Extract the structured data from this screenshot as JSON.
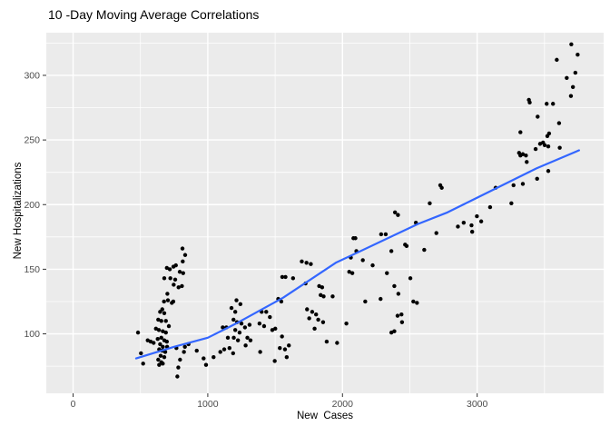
{
  "title": "10 -Day Moving Average Correlations",
  "chart_data": {
    "type": "scatter",
    "title": "10 -Day Moving Average Correlations",
    "xlabel": "New  Cases",
    "ylabel": "New Hospitalizations",
    "xlim": [
      -199,
      3939
    ],
    "ylim": [
      54,
      333
    ],
    "x_ticks": [
      0,
      1000,
      2000,
      3000
    ],
    "x_minor_ticks": [
      500,
      1500,
      2500,
      3500
    ],
    "y_ticks": [
      100,
      150,
      200,
      250,
      300
    ],
    "y_minor_ticks": [
      75,
      125,
      175,
      225,
      275,
      325
    ],
    "grid": true,
    "legend": false,
    "colors": {
      "panel_background": "#EBEBEB",
      "grid_line": "#FFFFFF",
      "point": "#000000",
      "smooth_line": "#3366FF",
      "tick_label": "#4D4D4D",
      "tick_mark": "#333333",
      "title": "#000000"
    },
    "points": [
      [
        482,
        101
      ],
      [
        504,
        85
      ],
      [
        520,
        77
      ],
      [
        554,
        95
      ],
      [
        576,
        94
      ],
      [
        598,
        93
      ],
      [
        615,
        104
      ],
      [
        628,
        96
      ],
      [
        632,
        111
      ],
      [
        632,
        80
      ],
      [
        637,
        103
      ],
      [
        639,
        88
      ],
      [
        639,
        76
      ],
      [
        646,
        117
      ],
      [
        646,
        92
      ],
      [
        650,
        83
      ],
      [
        655,
        110
      ],
      [
        655,
        97
      ],
      [
        655,
        78
      ],
      [
        662,
        119
      ],
      [
        662,
        87
      ],
      [
        666,
        102
      ],
      [
        666,
        90
      ],
      [
        666,
        77
      ],
      [
        675,
        125
      ],
      [
        677,
        143
      ],
      [
        677,
        116
      ],
      [
        677,
        95
      ],
      [
        677,
        82
      ],
      [
        684,
        86
      ],
      [
        689,
        110
      ],
      [
        689,
        101
      ],
      [
        696,
        151
      ],
      [
        696,
        94
      ],
      [
        698,
        90
      ],
      [
        700,
        131
      ],
      [
        704,
        126
      ],
      [
        711,
        106
      ],
      [
        718,
        150
      ],
      [
        722,
        143
      ],
      [
        733,
        124
      ],
      [
        744,
        125
      ],
      [
        745,
        152
      ],
      [
        747,
        138
      ],
      [
        758,
        142
      ],
      [
        763,
        153
      ],
      [
        767,
        89
      ],
      [
        774,
        67
      ],
      [
        781,
        74
      ],
      [
        783,
        136
      ],
      [
        792,
        148
      ],
      [
        794,
        80
      ],
      [
        808,
        137
      ],
      [
        812,
        166
      ],
      [
        814,
        156
      ],
      [
        817,
        147
      ],
      [
        823,
        86
      ],
      [
        830,
        90
      ],
      [
        832,
        161
      ],
      [
        857,
        92
      ],
      [
        918,
        87
      ],
      [
        969,
        81
      ],
      [
        987,
        76
      ],
      [
        1043,
        82
      ],
      [
        1093,
        86
      ],
      [
        1111,
        105
      ],
      [
        1122,
        88
      ],
      [
        1138,
        105
      ],
      [
        1149,
        97
      ],
      [
        1161,
        89
      ],
      [
        1176,
        120
      ],
      [
        1188,
        85
      ],
      [
        1191,
        111
      ],
      [
        1193,
        97
      ],
      [
        1204,
        117
      ],
      [
        1204,
        103
      ],
      [
        1213,
        126
      ],
      [
        1217,
        109
      ],
      [
        1224,
        95
      ],
      [
        1236,
        101
      ],
      [
        1242,
        123
      ],
      [
        1250,
        108
      ],
      [
        1276,
        105
      ],
      [
        1281,
        91
      ],
      [
        1294,
        97
      ],
      [
        1310,
        107
      ],
      [
        1317,
        95
      ],
      [
        1384,
        108
      ],
      [
        1389,
        86
      ],
      [
        1400,
        117
      ],
      [
        1418,
        106
      ],
      [
        1434,
        117
      ],
      [
        1461,
        113
      ],
      [
        1479,
        103
      ],
      [
        1497,
        79
      ],
      [
        1501,
        104
      ],
      [
        1523,
        127
      ],
      [
        1535,
        89
      ],
      [
        1546,
        125
      ],
      [
        1551,
        98
      ],
      [
        1553,
        144
      ],
      [
        1573,
        88
      ],
      [
        1577,
        144
      ],
      [
        1586,
        82
      ],
      [
        1602,
        91
      ],
      [
        1633,
        143
      ],
      [
        1698,
        156
      ],
      [
        1726,
        139
      ],
      [
        1733,
        155
      ],
      [
        1737,
        119
      ],
      [
        1753,
        112
      ],
      [
        1765,
        154
      ],
      [
        1775,
        117
      ],
      [
        1793,
        104
      ],
      [
        1804,
        115
      ],
      [
        1820,
        111
      ],
      [
        1827,
        137
      ],
      [
        1838,
        130
      ],
      [
        1849,
        136
      ],
      [
        1856,
        109
      ],
      [
        1860,
        129
      ],
      [
        1883,
        94
      ],
      [
        1927,
        129
      ],
      [
        1960,
        93
      ],
      [
        2029,
        108
      ],
      [
        2050,
        148
      ],
      [
        2062,
        159
      ],
      [
        2073,
        147
      ],
      [
        2081,
        174
      ],
      [
        2096,
        174
      ],
      [
        2103,
        164
      ],
      [
        2151,
        157
      ],
      [
        2169,
        125
      ],
      [
        2224,
        153
      ],
      [
        2283,
        127
      ],
      [
        2287,
        177
      ],
      [
        2321,
        177
      ],
      [
        2330,
        147
      ],
      [
        2363,
        164
      ],
      [
        2363,
        101
      ],
      [
        2385,
        137
      ],
      [
        2385,
        102
      ],
      [
        2390,
        194
      ],
      [
        2412,
        192
      ],
      [
        2409,
        114
      ],
      [
        2415,
        131
      ],
      [
        2438,
        115
      ],
      [
        2442,
        109
      ],
      [
        2465,
        169
      ],
      [
        2476,
        168
      ],
      [
        2504,
        143
      ],
      [
        2526,
        125
      ],
      [
        2545,
        186
      ],
      [
        2553,
        124
      ],
      [
        2607,
        165
      ],
      [
        2648,
        201
      ],
      [
        2697,
        178
      ],
      [
        2726,
        215
      ],
      [
        2737,
        213
      ],
      [
        2857,
        183
      ],
      [
        2900,
        186
      ],
      [
        2958,
        184
      ],
      [
        2963,
        179
      ],
      [
        2998,
        191
      ],
      [
        3030,
        187
      ],
      [
        3096,
        198
      ],
      [
        3137,
        213
      ],
      [
        3254,
        201
      ],
      [
        3270,
        215
      ],
      [
        3311,
        240
      ],
      [
        3321,
        238
      ],
      [
        3321,
        256
      ],
      [
        3339,
        239
      ],
      [
        3339,
        216
      ],
      [
        3362,
        238
      ],
      [
        3368,
        233
      ],
      [
        3384,
        281
      ],
      [
        3390,
        279
      ],
      [
        3434,
        243
      ],
      [
        3445,
        220
      ],
      [
        3449,
        268
      ],
      [
        3467,
        247
      ],
      [
        3489,
        248
      ],
      [
        3501,
        246
      ],
      [
        3516,
        278
      ],
      [
        3521,
        253
      ],
      [
        3528,
        245
      ],
      [
        3528,
        226
      ],
      [
        3534,
        255
      ],
      [
        3563,
        278
      ],
      [
        3591,
        312
      ],
      [
        3608,
        263
      ],
      [
        3613,
        244
      ],
      [
        3665,
        298
      ],
      [
        3696,
        284
      ],
      [
        3699,
        324
      ],
      [
        3711,
        291
      ],
      [
        3729,
        302
      ],
      [
        3746,
        316
      ]
    ],
    "smooth_line": [
      [
        468,
        81
      ],
      [
        750,
        90
      ],
      [
        1000,
        97
      ],
      [
        1210,
        108
      ],
      [
        1560,
        128
      ],
      [
        1950,
        155
      ],
      [
        2560,
        185
      ],
      [
        2780,
        194
      ],
      [
        3440,
        228
      ],
      [
        3756,
        242
      ]
    ]
  }
}
